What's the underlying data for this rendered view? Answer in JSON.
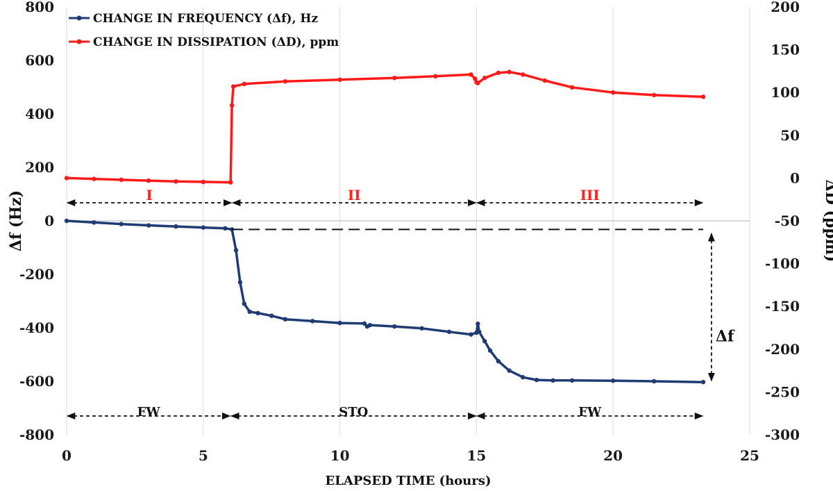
{
  "chart_data": {
    "type": "line",
    "xlabel": "ELAPSED TIME  (hours)",
    "ylabel_left": "Δf (Hz)",
    "ylabel_right": "ΔD (ppm)",
    "xlim": [
      0,
      25
    ],
    "ylim_left": [
      -800,
      800
    ],
    "ylim_right": [
      -300,
      200
    ],
    "xticks": [
      0,
      5,
      10,
      15,
      20,
      25
    ],
    "yticks_left": [
      800,
      600,
      400,
      200,
      0,
      -200,
      -400,
      -600,
      -800
    ],
    "yticks_right": [
      200,
      150,
      100,
      50,
      0,
      -50,
      -100,
      -150,
      -200,
      -250,
      -300
    ],
    "grid": "vertical",
    "legend_position": "top-left",
    "series": [
      {
        "name": "CHANGE IN FREQUENCY (Δf), Hz",
        "axis": "left",
        "color": "#1f3b73",
        "x": [
          0,
          1,
          2,
          3,
          4,
          5,
          5.8,
          6.05,
          6.2,
          6.35,
          6.5,
          6.7,
          7,
          7.5,
          8,
          9,
          10,
          10.9,
          11,
          11.1,
          12,
          13,
          14,
          14.8,
          15.0,
          15.05,
          15.1,
          15.3,
          15.5,
          15.8,
          16.2,
          16.7,
          17.2,
          17.8,
          18.5,
          20,
          21.5,
          23.3
        ],
        "y": [
          0,
          -6,
          -12,
          -17,
          -21,
          -25,
          -28,
          -32,
          -110,
          -230,
          -310,
          -340,
          -345,
          -355,
          -368,
          -375,
          -382,
          -384,
          -395,
          -390,
          -395,
          -402,
          -415,
          -425,
          -418,
          -385,
          -415,
          -450,
          -485,
          -525,
          -560,
          -585,
          -595,
          -597,
          -597,
          -598,
          -600,
          -603
        ]
      },
      {
        "name": "CHANGE IN DISSIPATION (ΔD), ppm",
        "axis": "right",
        "color": "#ff1a1a",
        "x": [
          0,
          1,
          2,
          3,
          4,
          5,
          6.0,
          6.05,
          6.1,
          6.5,
          8,
          10,
          12,
          13.5,
          14.8,
          14.95,
          15.0,
          15.05,
          15.3,
          15.8,
          16.2,
          16.7,
          17.5,
          18.5,
          20,
          21.5,
          23.3
        ],
        "y": [
          0,
          -1,
          -2,
          -3,
          -4,
          -4.5,
          -5,
          85,
          107,
          110,
          113,
          115,
          117,
          119,
          121,
          116,
          112,
          111,
          117,
          123,
          124,
          121,
          114,
          106,
          100,
          97,
          95
        ]
      }
    ],
    "annotations": {
      "phases_top": [
        {
          "label": "I",
          "x_start": 0,
          "x_end": 6.05
        },
        {
          "label": "II",
          "x_start": 6.05,
          "x_end": 15.0
        },
        {
          "label": "III",
          "x_start": 15.0,
          "x_end": 23.3
        }
      ],
      "phases_bottom": [
        {
          "label": "FW",
          "x_start": 0,
          "x_end": 6.0
        },
        {
          "label": "STO",
          "x_start": 6.0,
          "x_end": 15.0
        },
        {
          "label": "FW",
          "x_start": 15.0,
          "x_end": 23.3
        }
      ],
      "delta_label": "Δf"
    }
  }
}
